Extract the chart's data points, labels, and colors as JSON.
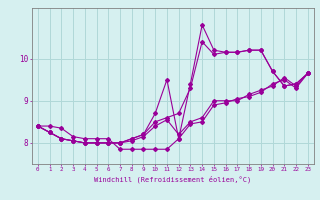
{
  "title": "",
  "xlabel": "Windchill (Refroidissement éolien,°C)",
  "ylabel": "",
  "bg_color": "#d6f0f0",
  "grid_color": "#b0d8d8",
  "line_color": "#990099",
  "spine_color": "#808080",
  "xlim": [
    -0.5,
    23.5
  ],
  "ylim": [
    7.5,
    11.2
  ],
  "yticks": [
    8,
    9,
    10
  ],
  "xticks": [
    0,
    1,
    2,
    3,
    4,
    5,
    6,
    7,
    8,
    9,
    10,
    11,
    12,
    13,
    14,
    15,
    16,
    17,
    18,
    19,
    20,
    21,
    22,
    23
  ],
  "series": [
    {
      "x": [
        0,
        1,
        2,
        3,
        4,
        5,
        6,
        7,
        8,
        9,
        10,
        11,
        12,
        13,
        14,
        15,
        16,
        17,
        18,
        19,
        20,
        21,
        22,
        23
      ],
      "y": [
        8.4,
        8.4,
        8.35,
        8.15,
        8.1,
        8.1,
        8.1,
        7.85,
        7.85,
        7.85,
        7.85,
        7.85,
        8.1,
        8.45,
        8.5,
        8.9,
        8.95,
        9.05,
        9.1,
        9.2,
        9.4,
        9.5,
        9.3,
        9.65
      ]
    },
    {
      "x": [
        0,
        1,
        2,
        3,
        4,
        5,
        6,
        7,
        8,
        9,
        10,
        11,
        12,
        13,
        14,
        15,
        16,
        17,
        18,
        19,
        20,
        21,
        22,
        23
      ],
      "y": [
        8.4,
        8.25,
        8.1,
        8.05,
        8.0,
        8.0,
        8.0,
        8.0,
        8.1,
        8.2,
        8.5,
        8.6,
        8.7,
        9.3,
        10.4,
        10.1,
        10.15,
        10.15,
        10.2,
        10.2,
        9.7,
        9.35,
        9.4,
        9.65
      ]
    },
    {
      "x": [
        0,
        1,
        2,
        3,
        4,
        5,
        6,
        7,
        8,
        9,
        10,
        11,
        12,
        13,
        14,
        15,
        16,
        17,
        18,
        19,
        20,
        21,
        22,
        23
      ],
      "y": [
        8.4,
        8.25,
        8.1,
        8.05,
        8.0,
        8.0,
        8.0,
        8.0,
        8.1,
        8.2,
        8.7,
        9.5,
        8.1,
        9.4,
        10.8,
        10.2,
        10.15,
        10.15,
        10.2,
        10.2,
        9.7,
        9.35,
        9.4,
        9.65
      ]
    },
    {
      "x": [
        0,
        1,
        2,
        3,
        4,
        5,
        6,
        7,
        8,
        9,
        10,
        11,
        12,
        13,
        14,
        15,
        16,
        17,
        18,
        19,
        20,
        21,
        22,
        23
      ],
      "y": [
        8.4,
        8.25,
        8.1,
        8.05,
        8.0,
        8.0,
        8.0,
        8.0,
        8.05,
        8.15,
        8.4,
        8.55,
        8.2,
        8.5,
        8.6,
        9.0,
        9.0,
        9.0,
        9.15,
        9.25,
        9.35,
        9.55,
        9.35,
        9.65
      ]
    }
  ]
}
